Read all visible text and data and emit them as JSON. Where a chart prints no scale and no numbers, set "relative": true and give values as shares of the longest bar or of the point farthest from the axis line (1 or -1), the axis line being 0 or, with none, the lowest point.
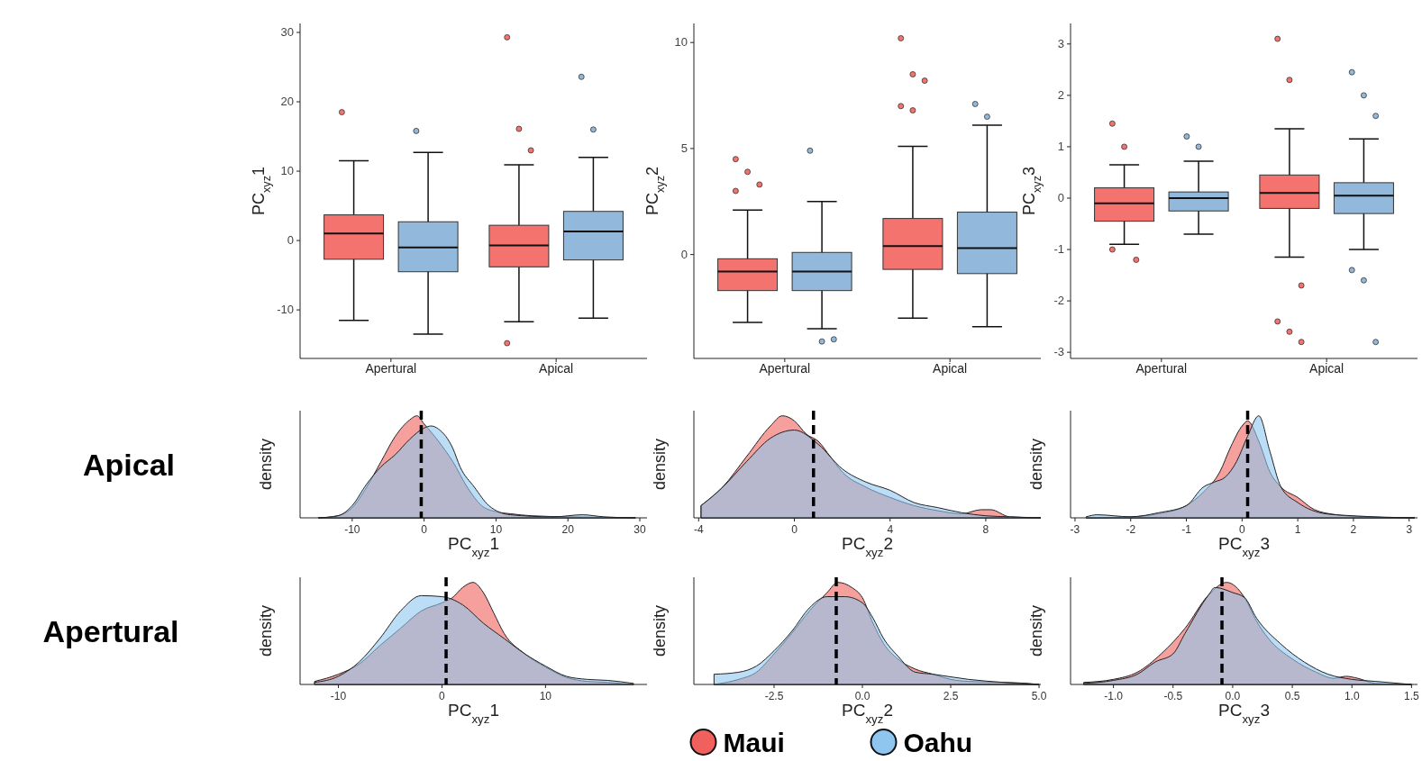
{
  "chart_data": [
    {
      "type": "box",
      "ylabel": "PC$_{xyz}$1",
      "categories": [
        "Apertural",
        "Apical"
      ],
      "ylim": [
        -17,
        31.3
      ],
      "yticks": [
        -10,
        0,
        10,
        20,
        30
      ],
      "series": [
        {
          "color": "#f4736e",
          "boxes": [
            {
              "low": -11.5,
              "q1": -2.7,
              "median": 1,
              "q3": 3.7,
              "high": 11.5,
              "outliers": [
                18.5
              ]
            },
            {
              "low": -11.7,
              "q1": -3.8,
              "median": -0.7,
              "q3": 2.2,
              "high": 10.9,
              "outliers": [
                29.3,
                16.1,
                13,
                -14.8
              ]
            }
          ]
        },
        {
          "color": "#92b8dc",
          "boxes": [
            {
              "low": -13.5,
              "q1": -4.5,
              "median": -1,
              "q3": 2.7,
              "high": 12.7,
              "outliers": [
                15.8
              ]
            },
            {
              "low": -11.2,
              "q1": -2.8,
              "median": 1.3,
              "q3": 4.2,
              "high": 12,
              "outliers": [
                23.6,
                16
              ]
            }
          ]
        }
      ]
    },
    {
      "type": "box",
      "ylabel": "PC$_{xyz}$2",
      "categories": [
        "Apertural",
        "Apical"
      ],
      "ylim": [
        -4.9,
        10.9
      ],
      "yticks": [
        0,
        5,
        10
      ],
      "series": [
        {
          "color": "#f4736e",
          "boxes": [
            {
              "low": -3.2,
              "q1": -1.7,
              "median": -0.8,
              "q3": -0.2,
              "high": 2.1,
              "outliers": [
                4.5,
                3.9,
                3.3,
                3.0
              ]
            },
            {
              "low": -3.0,
              "q1": -0.7,
              "median": 0.4,
              "q3": 1.7,
              "high": 5.1,
              "outliers": [
                10.2,
                8.5,
                8.2,
                7.0,
                6.8
              ]
            }
          ]
        },
        {
          "color": "#92b8dc",
          "boxes": [
            {
              "low": -3.5,
              "q1": -1.7,
              "median": -0.8,
              "q3": 0.1,
              "high": 2.5,
              "outliers": [
                4.9,
                -4.1,
                -4.0
              ]
            },
            {
              "low": -3.4,
              "q1": -0.9,
              "median": 0.3,
              "q3": 2.0,
              "high": 6.1,
              "outliers": [
                7.1,
                6.5
              ]
            }
          ]
        }
      ]
    },
    {
      "type": "box",
      "ylabel": "PC$_{xyz}$3",
      "categories": [
        "Apertural",
        "Apical"
      ],
      "ylim": [
        -3.12,
        3.4
      ],
      "yticks": [
        -3,
        -2,
        -1,
        0,
        1,
        2,
        3
      ],
      "series": [
        {
          "color": "#f4736e",
          "boxes": [
            {
              "low": -0.9,
              "q1": -0.45,
              "median": -0.1,
              "q3": 0.2,
              "high": 0.65,
              "outliers": [
                1.45,
                1.0,
                -1.2,
                -1.0
              ]
            },
            {
              "low": -1.15,
              "q1": -0.2,
              "median": 0.1,
              "q3": 0.45,
              "high": 1.35,
              "outliers": [
                3.1,
                2.3,
                -1.7,
                -2.4,
                -2.6,
                -2.8
              ]
            }
          ]
        },
        {
          "color": "#92b8dc",
          "boxes": [
            {
              "low": -0.7,
              "q1": -0.25,
              "median": 0.0,
              "q3": 0.12,
              "high": 0.72,
              "outliers": [
                1.2,
                1.0
              ]
            },
            {
              "low": -1.0,
              "q1": -0.3,
              "median": 0.05,
              "q3": 0.3,
              "high": 1.15,
              "outliers": [
                2.45,
                2.0,
                1.6,
                -1.4,
                -1.6,
                -2.8
              ]
            }
          ]
        }
      ]
    },
    {
      "type": "area",
      "title": "Apical",
      "xlabel": "PC$_{xyz}$1",
      "ylabel": "density",
      "relative": true,
      "xlim": [
        -17.25,
        31
      ],
      "xticks": [
        -10,
        0,
        10,
        20,
        30
      ],
      "ref_lines": [
        {
          "axis": "x",
          "value": -0.4,
          "line_style": "dashed"
        }
      ],
      "series": [
        {
          "color": "#f0605d",
          "x": [
            -14.7,
            -12,
            -10,
            -8,
            -6,
            -4,
            -2,
            -1,
            0,
            2,
            4,
            6,
            8,
            10,
            12,
            15,
            20,
            25,
            29.4
          ],
          "values": [
            0,
            0.02,
            0.1,
            0.3,
            0.55,
            0.8,
            0.96,
            1.0,
            0.92,
            0.75,
            0.55,
            0.3,
            0.12,
            0.06,
            0.04,
            0.02,
            0.01,
            0.005,
            0
          ]
        },
        {
          "color": "#8ec6ef",
          "x": [
            -14.7,
            -12,
            -10,
            -8,
            -6,
            -4,
            -2,
            0,
            1,
            2,
            4,
            5,
            7,
            9,
            12,
            18,
            22,
            25,
            29.4
          ],
          "values": [
            0,
            0.02,
            0.12,
            0.33,
            0.5,
            0.62,
            0.77,
            0.88,
            0.9,
            0.87,
            0.68,
            0.5,
            0.3,
            0.12,
            0.03,
            0.01,
            0.03,
            0.01,
            0
          ]
        }
      ]
    },
    {
      "type": "area",
      "xlabel": "PC$_{xyz}$2",
      "ylabel": "density",
      "relative": true,
      "xlim": [
        -4.2,
        10.3
      ],
      "xticks": [
        -4,
        0,
        4,
        8
      ],
      "ref_lines": [
        {
          "axis": "x",
          "value": 0.8,
          "line_style": "dashed"
        }
      ],
      "series": [
        {
          "color": "#f0605d",
          "x": [
            -3.9,
            -3,
            -2,
            -1,
            -0.5,
            0,
            0.5,
            1,
            1.5,
            2,
            3,
            4,
            5,
            6,
            7,
            7.8,
            8.2,
            9,
            10.3
          ],
          "values": [
            0.12,
            0.3,
            0.6,
            0.9,
            1.0,
            0.95,
            0.82,
            0.75,
            0.6,
            0.45,
            0.3,
            0.2,
            0.12,
            0.07,
            0.04,
            0.08,
            0.08,
            0.01,
            0
          ]
        },
        {
          "color": "#8ec6ef",
          "x": [
            -3.9,
            -3,
            -2,
            -1,
            0,
            1,
            2,
            3,
            4,
            5,
            6,
            7,
            8,
            9,
            10.3
          ],
          "values": [
            0.12,
            0.3,
            0.55,
            0.78,
            0.86,
            0.72,
            0.48,
            0.35,
            0.27,
            0.15,
            0.1,
            0.05,
            0.02,
            0.01,
            0
          ]
        }
      ]
    },
    {
      "type": "area",
      "xlabel": "PC$_{xyz}$3",
      "ylabel": "density",
      "relative": true,
      "xlim": [
        -3.08,
        3.15
      ],
      "xticks": [
        -3,
        -2,
        -1,
        0,
        1,
        2,
        3
      ],
      "ref_lines": [
        {
          "axis": "x",
          "value": 0.1,
          "line_style": "dashed"
        }
      ],
      "series": [
        {
          "color": "#f0605d",
          "x": [
            -2.8,
            -2,
            -1.5,
            -1,
            -0.7,
            -0.4,
            -0.2,
            0,
            0.1,
            0.3,
            0.5,
            0.7,
            1,
            1.3,
            1.7,
            2.2,
            3.1
          ],
          "values": [
            0,
            0.01,
            0.04,
            0.12,
            0.25,
            0.45,
            0.7,
            0.9,
            0.95,
            0.75,
            0.45,
            0.3,
            0.2,
            0.08,
            0.03,
            0.01,
            0
          ]
        },
        {
          "color": "#8ec6ef",
          "x": [
            -2.8,
            -2.6,
            -2,
            -1.5,
            -1,
            -0.7,
            -0.5,
            -0.3,
            -0.1,
            0.1,
            0.3,
            0.5,
            0.7,
            1,
            1.5,
            2,
            3.1
          ],
          "values": [
            0.01,
            0.03,
            0.01,
            0.05,
            0.12,
            0.3,
            0.35,
            0.4,
            0.55,
            0.8,
            1.0,
            0.65,
            0.3,
            0.15,
            0.04,
            0.02,
            0
          ]
        }
      ]
    },
    {
      "type": "area",
      "title": "Apertural",
      "xlabel": "PC$_{xyz}$1",
      "ylabel": "density",
      "relative": true,
      "xlim": [
        -13.7,
        19.8
      ],
      "xticks": [
        -10,
        0,
        10
      ],
      "ref_lines": [
        {
          "axis": "x",
          "value": 0.4,
          "line_style": "dashed"
        }
      ],
      "series": [
        {
          "color": "#f0605d",
          "x": [
            -12.3,
            -10,
            -8,
            -6,
            -4,
            -2,
            0,
            1,
            2,
            3,
            4,
            5,
            6,
            8,
            10,
            12,
            14,
            16,
            18.5
          ],
          "values": [
            0.03,
            0.1,
            0.2,
            0.38,
            0.55,
            0.72,
            0.8,
            0.85,
            0.95,
            1.0,
            0.9,
            0.7,
            0.5,
            0.3,
            0.17,
            0.07,
            0.03,
            0.02,
            0
          ]
        },
        {
          "color": "#8ec6ef",
          "x": [
            -12.3,
            -10,
            -8,
            -6,
            -4,
            -2,
            0,
            2,
            4,
            6,
            8,
            10,
            12,
            14,
            16,
            18.5
          ],
          "values": [
            0.02,
            0.08,
            0.22,
            0.45,
            0.72,
            0.87,
            0.86,
            0.78,
            0.6,
            0.45,
            0.3,
            0.18,
            0.08,
            0.05,
            0.04,
            0.01
          ]
        }
      ]
    },
    {
      "type": "area",
      "xlabel": "PC$_{xyz}$2",
      "ylabel": "density",
      "relative": true,
      "legend": "bottom",
      "xlim": [
        -4.77,
        5.05
      ],
      "xticks": [
        {
          "value": -2.5,
          "label": "-2.5"
        },
        {
          "value": 0,
          "label": "0.0"
        },
        {
          "value": 2.5,
          "label": "2.5"
        },
        {
          "value": 5,
          "label": "5.0"
        }
      ],
      "ref_lines": [
        {
          "axis": "x",
          "value": -0.74,
          "line_style": "dashed"
        }
      ],
      "series": [
        {
          "name": "Maui",
          "color": "#f0605d",
          "x": [
            -4.2,
            -3.5,
            -3,
            -2.5,
            -2,
            -1.5,
            -1,
            -0.7,
            -0.3,
            0,
            0.3,
            0.6,
            1,
            1.5,
            2,
            2.5,
            3,
            4,
            4.7,
            5
          ],
          "values": [
            0,
            0.05,
            0.12,
            0.3,
            0.5,
            0.72,
            0.9,
            1.0,
            0.95,
            0.85,
            0.6,
            0.4,
            0.25,
            0.15,
            0.1,
            0.05,
            0.03,
            0.02,
            0.01,
            0
          ]
        },
        {
          "name": "Oahu",
          "color": "#8ec6ef",
          "x": [
            -4.2,
            -3.5,
            -3,
            -2.5,
            -2,
            -1.5,
            -1,
            -0.5,
            0,
            0.3,
            0.6,
            1,
            1.5,
            2,
            3,
            4,
            5
          ],
          "values": [
            0.1,
            0.12,
            0.18,
            0.33,
            0.52,
            0.75,
            0.86,
            0.86,
            0.8,
            0.65,
            0.45,
            0.28,
            0.12,
            0.1,
            0.05,
            0.02,
            0
          ]
        }
      ]
    },
    {
      "type": "area",
      "xlabel": "PC$_{xyz}$3",
      "ylabel": "density",
      "relative": true,
      "xlim": [
        -1.36,
        1.55
      ],
      "xticks": [
        {
          "value": -1,
          "label": "-1.0"
        },
        {
          "value": -0.5,
          "label": "-0.5"
        },
        {
          "value": 0,
          "label": "0.0"
        },
        {
          "value": 0.5,
          "label": "0.5"
        },
        {
          "value": 1,
          "label": "1.0"
        },
        {
          "value": 1.5,
          "label": "1.5"
        }
      ],
      "ref_lines": [
        {
          "axis": "x",
          "value": -0.09,
          "line_style": "dashed"
        }
      ],
      "series": [
        {
          "color": "#f0605d",
          "x": [
            -1.25,
            -1.0,
            -0.8,
            -0.6,
            -0.4,
            -0.2,
            -0.05,
            0.1,
            0.2,
            0.3,
            0.5,
            0.7,
            0.85,
            0.95,
            1.05,
            1.2,
            1.5
          ],
          "values": [
            0.02,
            0.05,
            0.12,
            0.3,
            0.55,
            0.88,
            1.0,
            0.85,
            0.62,
            0.45,
            0.25,
            0.12,
            0.06,
            0.08,
            0.06,
            0.01,
            0
          ]
        },
        {
          "color": "#8ec6ef",
          "x": [
            -1.25,
            -1,
            -0.8,
            -0.65,
            -0.5,
            -0.4,
            -0.2,
            -0.15,
            0,
            0.1,
            0.2,
            0.4,
            0.6,
            0.8,
            1.0,
            1.2,
            1.5
          ],
          "values": [
            0.01,
            0.04,
            0.1,
            0.22,
            0.3,
            0.5,
            0.88,
            0.95,
            0.9,
            0.85,
            0.65,
            0.4,
            0.22,
            0.1,
            0.05,
            0.03,
            0
          ]
        }
      ]
    }
  ]
}
